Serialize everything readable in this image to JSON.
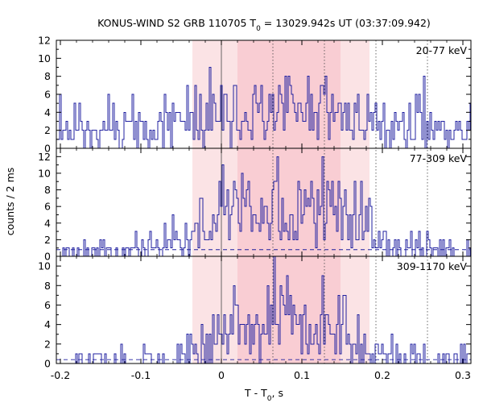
{
  "chart_data": {
    "type": "line",
    "title_main": "KONUS-WIND S2 GRB 110705 T",
    "title_sub": "0",
    "title_rest": " = 13029.942s UT (03:37:09.942)",
    "ylabel": "counts / 2 ms",
    "xlabel_main": "T - T",
    "xlabel_sub": "0",
    "xlabel_rest": ", s",
    "xlim": [
      -0.205,
      0.31
    ],
    "xticks": [
      "-0.2",
      "-0.1",
      "0",
      "0.1",
      "0.2",
      "0.3"
    ],
    "xtick_values": [
      -0.2,
      -0.1,
      0,
      0.1,
      0.2,
      0.3
    ],
    "colors": {
      "series": "#2020a0",
      "shade_outer": "#fbe3e5",
      "shade_inner": "#f8c6cc",
      "background_dashed": "#2020a0",
      "vline": "#444444"
    },
    "shaded_regions": [
      {
        "start": -0.036,
        "end": 0.184,
        "level": "outer"
      },
      {
        "start": 0.02,
        "end": 0.148,
        "level": "inner"
      }
    ],
    "vertical_lines": [
      0.064,
      0.128,
      0.192,
      0.256
    ],
    "panels": [
      {
        "label": "20-77 keV",
        "ylim": [
          0,
          12
        ],
        "yticks": [
          "0",
          "2",
          "4",
          "6",
          "8",
          "10",
          "12"
        ],
        "ytick_values": [
          0,
          2,
          4,
          6,
          8,
          10,
          12
        ],
        "background": 2.5,
        "show_background": false,
        "seed": 11,
        "envelope": [
          [
            -0.205,
            2.5
          ],
          [
            -0.04,
            2.6
          ],
          [
            0.0,
            3.2
          ],
          [
            0.05,
            3.8
          ],
          [
            0.1,
            3.8
          ],
          [
            0.15,
            3.4
          ],
          [
            0.19,
            2.8
          ],
          [
            0.31,
            2.5
          ]
        ],
        "peaks": [
          [
            -0.2,
            6
          ],
          [
            -0.016,
            9
          ],
          [
            0.085,
            7
          ],
          [
            0.13,
            8
          ],
          [
            0.245,
            6
          ]
        ]
      },
      {
        "label": "77-309 keV",
        "ylim": [
          0,
          13
        ],
        "yticks": [
          "0",
          "2",
          "4",
          "6",
          "8",
          "10",
          "12"
        ],
        "ytick_values": [
          0,
          2,
          4,
          6,
          8,
          10,
          12
        ],
        "background": 0.8,
        "show_background": true,
        "seed": 23,
        "envelope": [
          [
            -0.205,
            0.5
          ],
          [
            -0.1,
            0.9
          ],
          [
            -0.05,
            1.8
          ],
          [
            -0.03,
            3.5
          ],
          [
            -0.01,
            4.8
          ],
          [
            0.0,
            6.5
          ],
          [
            0.03,
            6.0
          ],
          [
            0.07,
            5.0
          ],
          [
            0.1,
            4.5
          ],
          [
            0.13,
            6.5
          ],
          [
            0.165,
            5.8
          ],
          [
            0.19,
            2.5
          ],
          [
            0.21,
            0.9
          ],
          [
            0.31,
            0.6
          ]
        ],
        "peaks": [
          [
            0.001,
            11
          ],
          [
            0.026,
            10
          ],
          [
            0.066,
            9
          ],
          [
            0.146,
            9
          ],
          [
            0.165,
            9
          ],
          [
            0.305,
            2
          ]
        ]
      },
      {
        "label": "309-1170 keV",
        "ylim": [
          0,
          11
        ],
        "yticks": [
          "0",
          "2",
          "4",
          "6",
          "8",
          "10"
        ],
        "ytick_values": [
          0,
          2,
          4,
          6,
          8,
          10
        ],
        "background": 0.4,
        "show_background": true,
        "seed": 37,
        "envelope": [
          [
            -0.205,
            0.3
          ],
          [
            -0.05,
            0.4
          ],
          [
            -0.03,
            1.6
          ],
          [
            0.0,
            2.8
          ],
          [
            0.02,
            3.6
          ],
          [
            0.05,
            2.8
          ],
          [
            0.06,
            5.0
          ],
          [
            0.08,
            4.8
          ],
          [
            0.1,
            3.0
          ],
          [
            0.13,
            4.6
          ],
          [
            0.16,
            3.6
          ],
          [
            0.18,
            1.5
          ],
          [
            0.2,
            0.5
          ],
          [
            0.31,
            0.3
          ]
        ],
        "peaks": [
          [
            0.064,
            11
          ],
          [
            0.126,
            9
          ],
          [
            0.145,
            7
          ],
          [
            0.018,
            6
          ],
          [
            0.29,
            1
          ]
        ]
      }
    ]
  }
}
